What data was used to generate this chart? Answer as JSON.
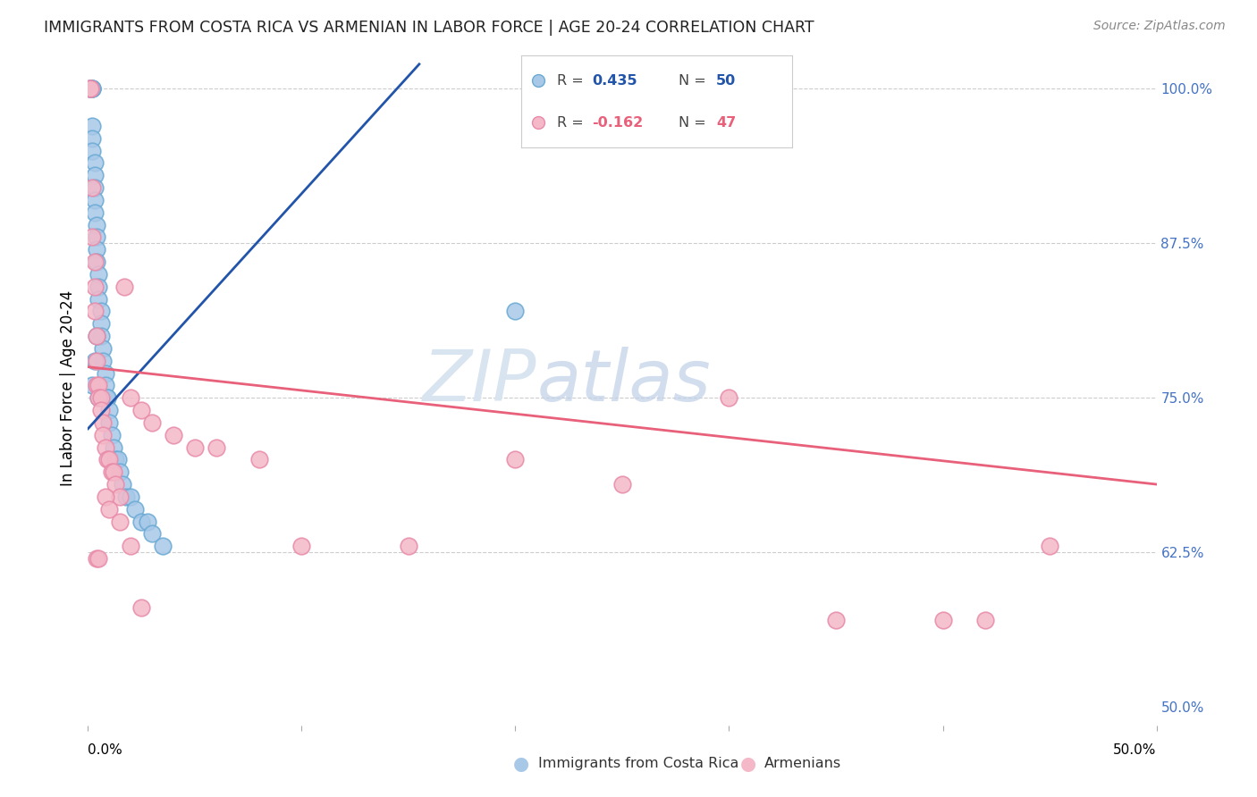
{
  "title": "IMMIGRANTS FROM COSTA RICA VS ARMENIAN IN LABOR FORCE | AGE 20-24 CORRELATION CHART",
  "source": "Source: ZipAtlas.com",
  "ylabel": "In Labor Force | Age 20-24",
  "xmin": 0.0,
  "xmax": 0.5,
  "ymin": 0.485,
  "ymax": 1.03,
  "blue_color": "#a8c8e8",
  "blue_edge_color": "#6aaad4",
  "pink_color": "#f4b8c8",
  "pink_edge_color": "#e88aa8",
  "blue_line_color": "#2255aa",
  "pink_line_color": "#e8607a",
  "watermark_zip": "ZIP",
  "watermark_atlas": "atlas",
  "legend_label_blue": "Immigrants from Costa Rica",
  "legend_label_pink": "Armenians",
  "blue_r": "0.435",
  "blue_n": "50",
  "pink_r": "-0.162",
  "pink_n": "47",
  "blue_x": [
    0.001,
    0.001,
    0.001,
    0.002,
    0.002,
    0.002,
    0.002,
    0.002,
    0.002,
    0.003,
    0.003,
    0.003,
    0.003,
    0.003,
    0.004,
    0.004,
    0.004,
    0.004,
    0.005,
    0.005,
    0.005,
    0.006,
    0.006,
    0.006,
    0.007,
    0.007,
    0.008,
    0.008,
    0.009,
    0.009,
    0.01,
    0.01,
    0.011,
    0.012,
    0.013,
    0.014,
    0.015,
    0.016,
    0.018,
    0.02,
    0.022,
    0.025,
    0.028,
    0.03,
    0.035,
    0.002,
    0.003,
    0.004,
    0.005,
    0.2
  ],
  "blue_y": [
    1.0,
    1.0,
    1.0,
    1.0,
    1.0,
    1.0,
    0.97,
    0.96,
    0.95,
    0.94,
    0.93,
    0.92,
    0.91,
    0.9,
    0.89,
    0.88,
    0.87,
    0.86,
    0.85,
    0.84,
    0.83,
    0.82,
    0.81,
    0.8,
    0.79,
    0.78,
    0.77,
    0.76,
    0.75,
    0.75,
    0.74,
    0.73,
    0.72,
    0.71,
    0.7,
    0.7,
    0.69,
    0.68,
    0.67,
    0.67,
    0.66,
    0.65,
    0.65,
    0.64,
    0.63,
    0.76,
    0.78,
    0.8,
    0.75,
    0.82
  ],
  "pink_x": [
    0.001,
    0.001,
    0.002,
    0.002,
    0.003,
    0.003,
    0.003,
    0.004,
    0.004,
    0.004,
    0.005,
    0.005,
    0.006,
    0.006,
    0.007,
    0.007,
    0.008,
    0.009,
    0.01,
    0.011,
    0.012,
    0.013,
    0.015,
    0.017,
    0.02,
    0.025,
    0.03,
    0.04,
    0.05,
    0.06,
    0.08,
    0.1,
    0.15,
    0.2,
    0.25,
    0.3,
    0.35,
    0.4,
    0.42,
    0.45,
    0.004,
    0.005,
    0.008,
    0.01,
    0.015,
    0.02,
    0.025
  ],
  "pink_y": [
    1.0,
    1.0,
    0.92,
    0.88,
    0.86,
    0.84,
    0.82,
    0.8,
    0.78,
    0.76,
    0.76,
    0.75,
    0.75,
    0.74,
    0.73,
    0.72,
    0.71,
    0.7,
    0.7,
    0.69,
    0.69,
    0.68,
    0.67,
    0.84,
    0.75,
    0.74,
    0.73,
    0.72,
    0.71,
    0.71,
    0.7,
    0.63,
    0.63,
    0.7,
    0.68,
    0.75,
    0.57,
    0.57,
    0.57,
    0.63,
    0.62,
    0.62,
    0.67,
    0.66,
    0.65,
    0.63,
    0.58
  ],
  "blue_line_x0": 0.0,
  "blue_line_y0": 0.725,
  "blue_line_x1": 0.155,
  "blue_line_y1": 1.02,
  "pink_line_x0": 0.0,
  "pink_line_y0": 0.775,
  "pink_line_x1": 0.5,
  "pink_line_y1": 0.68
}
